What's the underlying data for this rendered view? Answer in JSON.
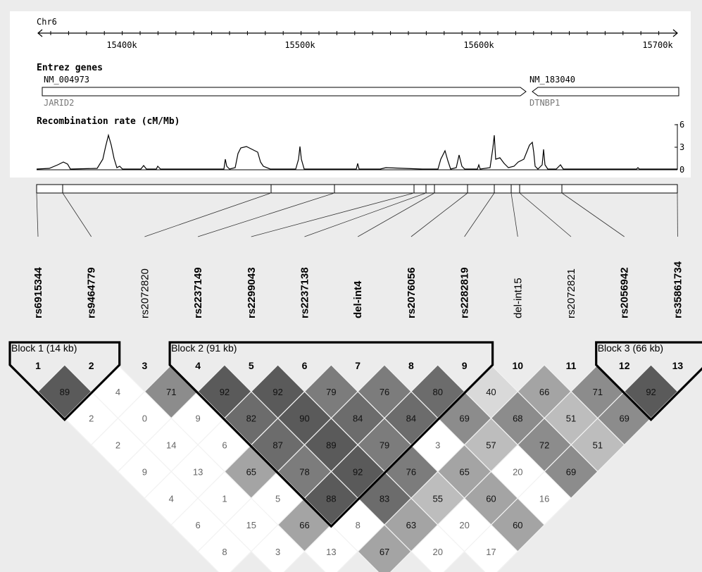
{
  "chromosome": "Chr6",
  "axis_ticks": [
    "15400k",
    "15500k",
    "15600k",
    "15700k"
  ],
  "genes_title": "Entrez genes",
  "genes": [
    {
      "accession": "NM_004973",
      "symbol": "JARID2",
      "strand": "+"
    },
    {
      "accession": "NM_183040",
      "symbol": "DTNBP1",
      "strand": "-"
    }
  ],
  "recomb_title": "Recombination rate (cM/Mb)",
  "recomb_axis": [
    "6",
    "3",
    "0"
  ],
  "snps": [
    {
      "index": "1",
      "name": "rs6915344",
      "bold": true
    },
    {
      "index": "2",
      "name": "rs9464779",
      "bold": true
    },
    {
      "index": "3",
      "name": "rs2072820",
      "bold": false
    },
    {
      "index": "4",
      "name": "rs2237149",
      "bold": true
    },
    {
      "index": "5",
      "name": "rs2299043",
      "bold": true
    },
    {
      "index": "6",
      "name": "rs2237138",
      "bold": true
    },
    {
      "index": "7",
      "name": "del-int4",
      "bold": true
    },
    {
      "index": "8",
      "name": "rs2076056",
      "bold": true
    },
    {
      "index": "9",
      "name": "rs2282819",
      "bold": true
    },
    {
      "index": "10",
      "name": "del-int15",
      "bold": false
    },
    {
      "index": "11",
      "name": "rs2072821",
      "bold": false
    },
    {
      "index": "12",
      "name": "rs2056942",
      "bold": true
    },
    {
      "index": "13",
      "name": "rs35861734",
      "bold": true
    }
  ],
  "blocks": [
    {
      "label": "Block 1 (14 kb)",
      "from": 1,
      "to": 2
    },
    {
      "label": "Block 2 (91 kb)",
      "from": 4,
      "to": 9
    },
    {
      "label": "Block 3 (66 kb)",
      "from": 12,
      "to": 13
    }
  ],
  "ld_values": [
    {
      "i": 1,
      "j": 2,
      "v": "89"
    },
    {
      "i": 2,
      "j": 3,
      "v": "4"
    },
    {
      "i": 3,
      "j": 4,
      "v": "71"
    },
    {
      "i": 4,
      "j": 5,
      "v": "92"
    },
    {
      "i": 5,
      "j": 6,
      "v": "92"
    },
    {
      "i": 6,
      "j": 7,
      "v": "79"
    },
    {
      "i": 7,
      "j": 8,
      "v": "76"
    },
    {
      "i": 8,
      "j": 9,
      "v": "80"
    },
    {
      "i": 9,
      "j": 10,
      "v": "40"
    },
    {
      "i": 10,
      "j": 11,
      "v": "66"
    },
    {
      "i": 11,
      "j": 12,
      "v": "71"
    },
    {
      "i": 12,
      "j": 13,
      "v": "92"
    },
    {
      "i": 1,
      "j": 3,
      "v": "2"
    },
    {
      "i": 2,
      "j": 4,
      "v": "0"
    },
    {
      "i": 3,
      "j": 5,
      "v": "9"
    },
    {
      "i": 4,
      "j": 6,
      "v": "82"
    },
    {
      "i": 5,
      "j": 7,
      "v": "90"
    },
    {
      "i": 6,
      "j": 8,
      "v": "84"
    },
    {
      "i": 7,
      "j": 9,
      "v": "84"
    },
    {
      "i": 8,
      "j": 10,
      "v": "69"
    },
    {
      "i": 9,
      "j": 11,
      "v": "68"
    },
    {
      "i": 10,
      "j": 12,
      "v": "51"
    },
    {
      "i": 11,
      "j": 13,
      "v": "69"
    },
    {
      "i": 1,
      "j": 4,
      "v": "2"
    },
    {
      "i": 2,
      "j": 5,
      "v": "14"
    },
    {
      "i": 3,
      "j": 6,
      "v": "6"
    },
    {
      "i": 4,
      "j": 7,
      "v": "87"
    },
    {
      "i": 5,
      "j": 8,
      "v": "89"
    },
    {
      "i": 6,
      "j": 9,
      "v": "79"
    },
    {
      "i": 7,
      "j": 10,
      "v": "3"
    },
    {
      "i": 8,
      "j": 11,
      "v": "57"
    },
    {
      "i": 9,
      "j": 12,
      "v": "72"
    },
    {
      "i": 10,
      "j": 13,
      "v": "51"
    },
    {
      "i": 1,
      "j": 5,
      "v": "9"
    },
    {
      "i": 2,
      "j": 6,
      "v": "13"
    },
    {
      "i": 3,
      "j": 7,
      "v": "65"
    },
    {
      "i": 4,
      "j": 8,
      "v": "78"
    },
    {
      "i": 5,
      "j": 9,
      "v": "92"
    },
    {
      "i": 6,
      "j": 10,
      "v": "76"
    },
    {
      "i": 7,
      "j": 11,
      "v": "65"
    },
    {
      "i": 8,
      "j": 12,
      "v": "20"
    },
    {
      "i": 9,
      "j": 13,
      "v": "69"
    },
    {
      "i": 1,
      "j": 6,
      "v": "4"
    },
    {
      "i": 2,
      "j": 7,
      "v": "1"
    },
    {
      "i": 3,
      "j": 8,
      "v": "5"
    },
    {
      "i": 4,
      "j": 9,
      "v": "88"
    },
    {
      "i": 5,
      "j": 10,
      "v": "83"
    },
    {
      "i": 6,
      "j": 11,
      "v": "55"
    },
    {
      "i": 7,
      "j": 12,
      "v": "60"
    },
    {
      "i": 8,
      "j": 13,
      "v": "16"
    },
    {
      "i": 1,
      "j": 7,
      "v": "6"
    },
    {
      "i": 2,
      "j": 8,
      "v": "15"
    },
    {
      "i": 3,
      "j": 9,
      "v": "66"
    },
    {
      "i": 4,
      "j": 10,
      "v": "8"
    },
    {
      "i": 5,
      "j": 11,
      "v": "63"
    },
    {
      "i": 6,
      "j": 12,
      "v": "20"
    },
    {
      "i": 7,
      "j": 13,
      "v": "60"
    },
    {
      "i": 1,
      "j": 8,
      "v": "8"
    },
    {
      "i": 2,
      "j": 9,
      "v": "3"
    },
    {
      "i": 3,
      "j": 10,
      "v": "13"
    },
    {
      "i": 4,
      "j": 11,
      "v": "67"
    },
    {
      "i": 5,
      "j": 12,
      "v": "20"
    },
    {
      "i": 6,
      "j": 13,
      "v": "17"
    }
  ]
}
